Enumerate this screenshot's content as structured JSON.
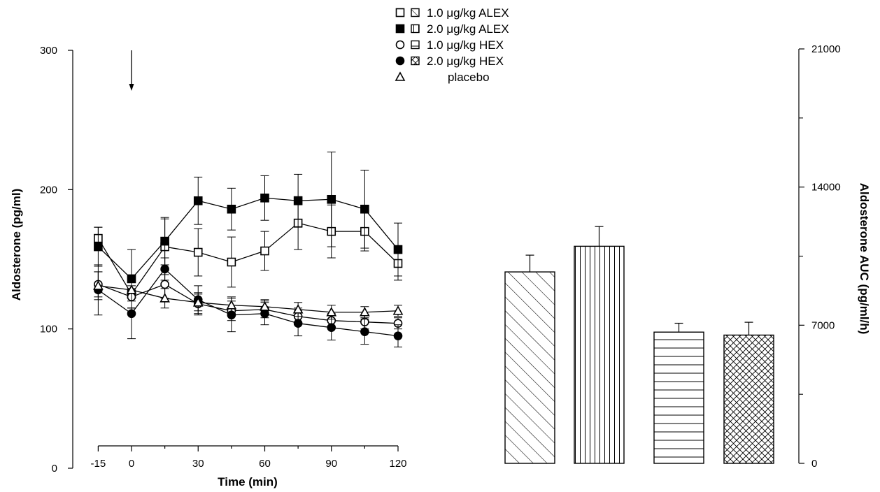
{
  "legend": {
    "entries": [
      {
        "marker": "open-square",
        "bar_pattern": "diagonal-hatch",
        "label": "1.0 μg/kg ALEX"
      },
      {
        "marker": "filled-square",
        "bar_pattern": "vertical-hatch",
        "label": "2.0 μg/kg ALEX"
      },
      {
        "marker": "open-circle",
        "bar_pattern": "horizontal-hatch",
        "label": "1.0 μg/kg HEX"
      },
      {
        "marker": "filled-circle",
        "bar_pattern": "cross-hatch",
        "label": "2.0 μg/kg HEX"
      },
      {
        "marker": "open-triangle",
        "bar_pattern": "",
        "label": "placebo"
      }
    ]
  },
  "annotation": {
    "arrow_at_time": 0
  },
  "chart_data": [
    {
      "type": "line",
      "xlabel": "Time (min)",
      "ylabel": "Aldosterone (pg/ml)",
      "xlim": [
        -15,
        120
      ],
      "ylim": [
        0,
        300
      ],
      "xticks": [
        -15,
        0,
        30,
        60,
        90,
        120
      ],
      "yticks": [
        0,
        100,
        200,
        300
      ],
      "x": [
        -15,
        0,
        15,
        30,
        45,
        60,
        75,
        90,
        105,
        120
      ],
      "series": [
        {
          "name": "1.0 μg/kg ALEX",
          "marker": "open-square",
          "values": [
            165,
            125,
            159,
            155,
            148,
            156,
            176,
            170,
            170,
            147
          ],
          "errors": [
            8,
            10,
            20,
            17,
            18,
            14,
            19,
            19,
            14,
            12
          ]
        },
        {
          "name": "2.0 μg/kg ALEX",
          "marker": "filled-square",
          "values": [
            159,
            136,
            163,
            192,
            186,
            194,
            192,
            193,
            186,
            157
          ],
          "errors": [
            14,
            21,
            17,
            17,
            15,
            16,
            19,
            34,
            28,
            19
          ]
        },
        {
          "name": "1.0 μg/kg HEX",
          "marker": "open-circle",
          "values": [
            132,
            123,
            132,
            118,
            113,
            114,
            109,
            106,
            105,
            104
          ],
          "errors": [
            9,
            8,
            10,
            8,
            7,
            6,
            6,
            5,
            5,
            4
          ]
        },
        {
          "name": "2.0 μg/kg HEX",
          "marker": "filled-circle",
          "values": [
            128,
            111,
            143,
            121,
            110,
            111,
            104,
            101,
            98,
            95
          ],
          "errors": [
            18,
            18,
            8,
            10,
            12,
            8,
            9,
            9,
            9,
            8
          ]
        },
        {
          "name": "placebo",
          "marker": "open-triangle",
          "values": [
            131,
            128,
            122,
            119,
            117,
            116,
            114,
            112,
            112,
            113
          ],
          "errors": [
            10,
            8,
            7,
            6,
            6,
            5,
            5,
            5,
            4,
            4
          ]
        }
      ]
    },
    {
      "type": "bar",
      "ylabel": "Aldosterone AUC (pg/ml/h)",
      "ylim": [
        0,
        21000
      ],
      "yticks": [
        0,
        7000,
        14000,
        21000
      ],
      "y_minor_ticks": [
        3500,
        10500,
        17500
      ],
      "categories": [
        "1.0 μg/kg ALEX",
        "2.0 μg/kg ALEX",
        "1.0 μg/kg HEX",
        "2.0 μg/kg HEX"
      ],
      "values": [
        9700,
        11000,
        6650,
        6500
      ],
      "errors": [
        850,
        1000,
        450,
        650
      ],
      "patterns": [
        "diagonal-hatch",
        "vertical-hatch",
        "horizontal-hatch",
        "cross-hatch"
      ]
    }
  ]
}
